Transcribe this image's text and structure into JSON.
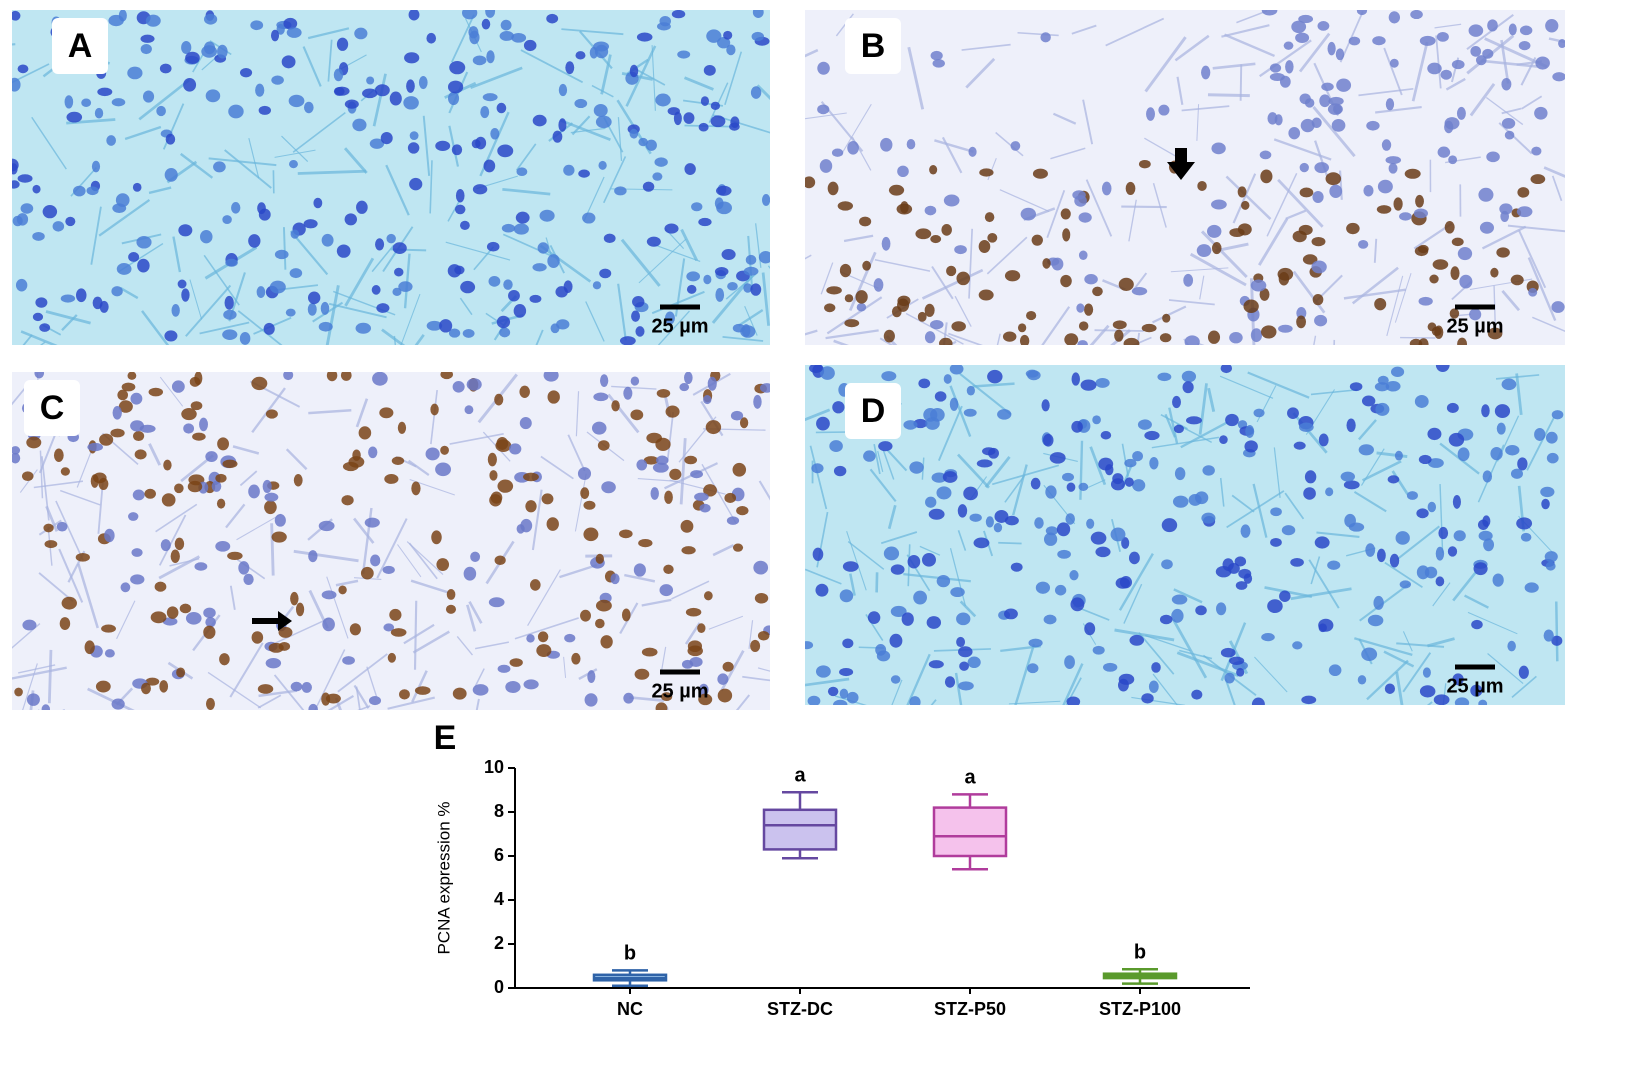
{
  "panels": [
    {
      "label": "A",
      "scale_bar": "25 µm",
      "stain": "blue"
    },
    {
      "label": "B",
      "scale_bar": "25 µm",
      "stain": "brown-band"
    },
    {
      "label": "C",
      "scale_bar": "25 µm",
      "stain": "brown"
    },
    {
      "label": "D",
      "scale_bar": "25 µm",
      "stain": "blue"
    }
  ],
  "chart_data": {
    "type": "box",
    "panel_label": "E",
    "y_label": "PCNA expression %",
    "categories": [
      "NC",
      "STZ-DC",
      "STZ-P50",
      "STZ-P100"
    ],
    "min": [
      0.1,
      5.9,
      5.4,
      0.2
    ],
    "q1": [
      0.35,
      6.3,
      6.0,
      0.45
    ],
    "median": [
      0.45,
      7.4,
      6.9,
      0.55
    ],
    "q3": [
      0.6,
      8.1,
      8.2,
      0.65
    ],
    "max": [
      0.8,
      8.9,
      8.8,
      0.85
    ],
    "colors": [
      "#2f63a8",
      "#6548a0",
      "#b03c9c",
      "#5a9a2c"
    ],
    "fill_colors": [
      "#9cc4ec",
      "#cbc2ee",
      "#f5c2ec",
      "#9ccc6c"
    ],
    "annotations": [
      "b",
      "a",
      "a",
      "b"
    ],
    "ylim": [
      0,
      10
    ],
    "yticks": [
      0,
      2,
      4,
      6,
      8,
      10
    ]
  }
}
